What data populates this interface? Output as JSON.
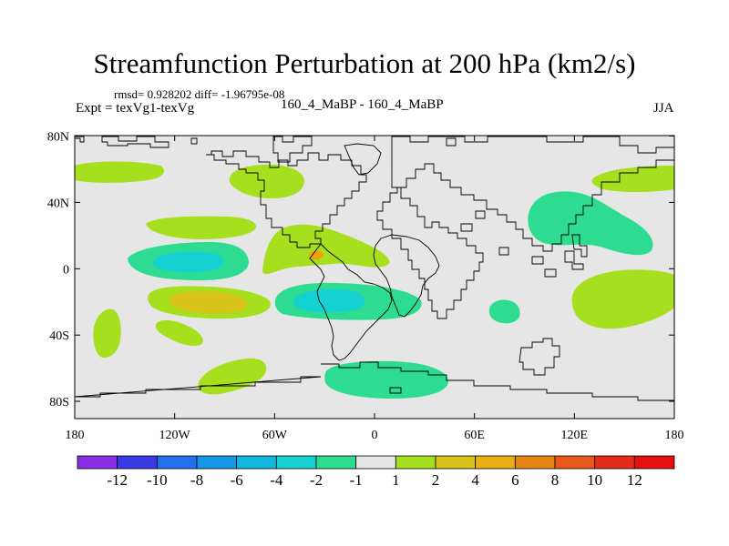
{
  "header": {
    "title": "Streamfunction Perturbation at 200 hPa (km2/s)",
    "rmsd_line": "rmsd= 0.928202 diff= -1.96795e-08",
    "expt_line": "Expt = texVg1-texVg",
    "cases_line": "160_4_MaBP - 160_4_MaBP",
    "season": "JJA"
  },
  "map": {
    "background_color": "#e6e6e6",
    "lat_labels": [
      "80N",
      "40N",
      "0",
      "40S",
      "80S"
    ],
    "lon_labels": [
      "180",
      "120W",
      "60W",
      "0",
      "60E",
      "120E",
      "180"
    ],
    "colors": {
      "pos_weak": "#a5df1e",
      "pos_med": "#d9c51a",
      "pos_strong": "#f0a20a",
      "neg_weak": "#2edc91",
      "neg_med": "#15d1d1"
    }
  },
  "colorbar": {
    "colors": [
      "#8a2ee6",
      "#3a3ae6",
      "#2370ee",
      "#1596e6",
      "#10b8e0",
      "#15d1d1",
      "#2edc91",
      "#e6e6e6",
      "#a5df1e",
      "#d9c51a",
      "#e8b012",
      "#e88414",
      "#e8581a",
      "#e62a1a",
      "#e61010"
    ],
    "labels": [
      "-12",
      "-10",
      "-8",
      "-6",
      "-4",
      "-2",
      "-1",
      "1",
      "2",
      "4",
      "6",
      "8",
      "10",
      "12"
    ]
  }
}
